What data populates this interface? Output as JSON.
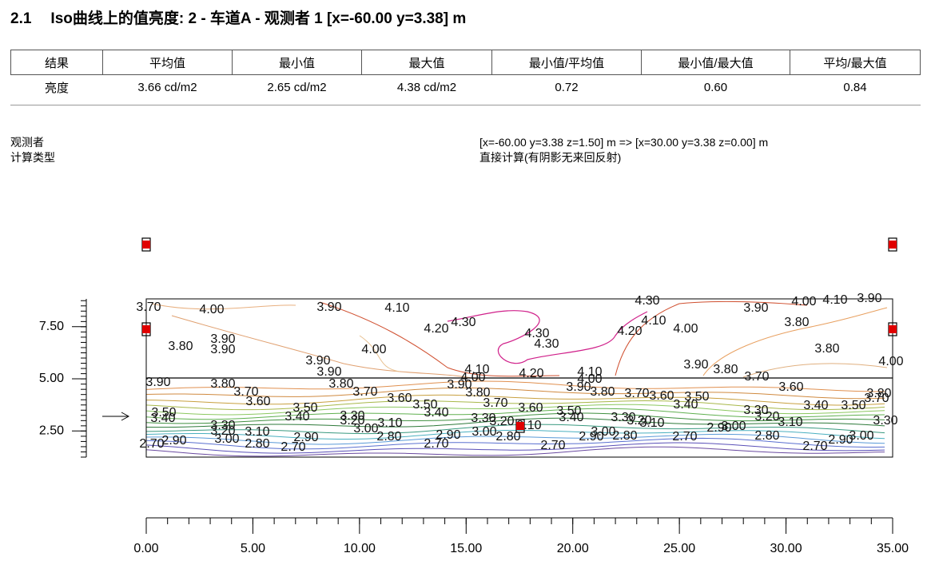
{
  "header": {
    "number": "2.1",
    "title": "Iso曲线上的值亮度: 2 - 车道A - 观测者 1 [x=-60.00 y=3.38] m"
  },
  "table": {
    "header": [
      "结果",
      "平均值",
      "最小值",
      "最大值",
      "最小值/平均值",
      "最小值/最大值",
      "平均/最大值"
    ],
    "rows": [
      [
        "亮度",
        "3.66 cd/m2",
        "2.65 cd/m2",
        "4.38 cd/m2",
        "0.72",
        "0.60",
        "0.84"
      ]
    ]
  },
  "info": [
    {
      "label": "观测者",
      "value": "[x=-60.00 y=3.38 z=1.50] m => [x=30.00 y=3.38 z=0.00] m"
    },
    {
      "label": "计算类型",
      "value": "直接计算(有阴影无来回反射)"
    }
  ],
  "plot": {
    "xlim": [
      0,
      35
    ],
    "xticks": [
      {
        "value": 0,
        "label": "0.00"
      },
      {
        "value": 5,
        "label": "5.00"
      },
      {
        "value": 10,
        "label": "10.00"
      },
      {
        "value": 15,
        "label": "15.00"
      },
      {
        "value": 20,
        "label": "20.00"
      },
      {
        "value": 25,
        "label": "25.00"
      },
      {
        "value": 30,
        "label": "30.00"
      },
      {
        "value": 35,
        "label": "35.00"
      }
    ],
    "yticks": [
      {
        "value": 2.5,
        "label": "2.50"
      },
      {
        "value": 5,
        "label": "5.00"
      },
      {
        "value": 7.5,
        "label": "7.50"
      }
    ],
    "contour_labels": [
      "3.70",
      "4.00",
      "3.90",
      "4.10",
      "4.30",
      "4.20",
      "4.30",
      "4.30",
      "4.30",
      "4.10",
      "4.20",
      "4.00",
      "3.90",
      "4.00",
      "4.10",
      "3.90",
      "3.80",
      "3.80",
      "4.00",
      "3.80",
      "3.90",
      "3.90",
      "4.00",
      "3.90",
      "3.90",
      "4.10",
      "4.00",
      "3.90",
      "4.20",
      "4.10",
      "4.00",
      "3.90",
      "3.80",
      "3.70",
      "3.90",
      "3.80",
      "3.80",
      "3.70",
      "3.70",
      "3.80",
      "3.90",
      "3.80",
      "3.70",
      "3.60",
      "3.50",
      "3.40",
      "3.60",
      "3.80",
      "3.70",
      "3.60",
      "3.60",
      "3.50",
      "3.70",
      "3.60",
      "3.50",
      "3.40",
      "3.40",
      "3.50",
      "3.40",
      "3.50",
      "3.40",
      "3.30",
      "3.20",
      "3.10",
      "3.00",
      "3.30",
      "3.20",
      "3.10",
      "3.00",
      "2.80",
      "3.30",
      "3.20",
      "3.10",
      "3.00",
      "2.90",
      "2.80",
      "3.30",
      "3.20",
      "3.10",
      "3.40",
      "3.50",
      "3.30",
      "3.00",
      "2.90",
      "3.30",
      "3.20",
      "3.10",
      "3.00",
      "2.90",
      "2.80",
      "2.70",
      "2.90",
      "2.70",
      "2.80",
      "2.90",
      "2.70",
      "2.70",
      "2.70",
      "2.80",
      "3.00",
      "2.90",
      "2.70"
    ]
  }
}
